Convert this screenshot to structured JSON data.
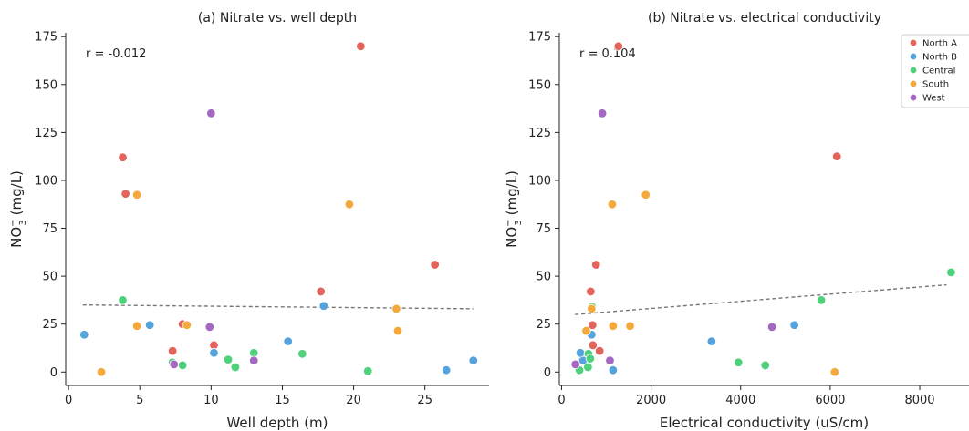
{
  "chart_data": [
    {
      "type": "scatter",
      "title": "(a) Nitrate vs. well depth",
      "xlabel": "Well depth (m)",
      "ylabel_main": "NO",
      "ylabel_sup": "−",
      "ylabel_sub": "3",
      "ylabel_unit": " (mg/L)",
      "xlim": [
        -0.2,
        29.5
      ],
      "ylim": [
        -7,
        177
      ],
      "xticks": [
        0,
        5,
        10,
        15,
        20,
        25
      ],
      "yticks": [
        0,
        25,
        50,
        75,
        100,
        125,
        150,
        175
      ],
      "annotation": "r = -0.012",
      "trend": {
        "x1": 1.0,
        "y1": 35.0,
        "x2": 28.4,
        "y2": 33.0
      },
      "series": [
        {
          "name": "North A",
          "color": "#e2645a",
          "points": [
            [
              3.8,
              112
            ],
            [
              4.0,
              93
            ],
            [
              7.3,
              11
            ],
            [
              8.0,
              25
            ],
            [
              10.2,
              14
            ],
            [
              17.7,
              42
            ],
            [
              20.5,
              170
            ],
            [
              25.7,
              56
            ]
          ]
        },
        {
          "name": "North B",
          "color": "#55a3dd",
          "points": [
            [
              1.1,
              19.5
            ],
            [
              5.7,
              24.5
            ],
            [
              10.2,
              10
            ],
            [
              15.4,
              16
            ],
            [
              17.9,
              34.5
            ],
            [
              26.5,
              1
            ],
            [
              28.4,
              6
            ]
          ]
        },
        {
          "name": "Central",
          "color": "#4fd17b",
          "points": [
            [
              3.8,
              37.5
            ],
            [
              7.3,
              5
            ],
            [
              8.0,
              3.5
            ],
            [
              11.2,
              6.5
            ],
            [
              11.7,
              2.5
            ],
            [
              13.0,
              10
            ],
            [
              16.4,
              9.5
            ],
            [
              21.0,
              0.5
            ]
          ]
        },
        {
          "name": "South",
          "color": "#f5a93c",
          "points": [
            [
              2.3,
              0
            ],
            [
              4.8,
              92.5
            ],
            [
              4.8,
              24
            ],
            [
              8.3,
              24.5
            ],
            [
              19.7,
              87.5
            ],
            [
              23.0,
              33
            ],
            [
              23.1,
              21.5
            ]
          ]
        },
        {
          "name": "West",
          "color": "#a468c2",
          "points": [
            [
              7.4,
              4
            ],
            [
              9.9,
              23.5
            ],
            [
              10.0,
              135
            ],
            [
              13.0,
              6
            ]
          ]
        }
      ]
    },
    {
      "type": "scatter",
      "title": "(b) Nitrate vs. electrical conductivity",
      "xlabel": "Electrical conductivity (uS/cm)",
      "ylabel_main": "NO",
      "ylabel_sup": "−",
      "ylabel_sub": "3",
      "ylabel_unit": " (mg/L)",
      "xlim": [
        -50,
        9100
      ],
      "ylim": [
        -7,
        177
      ],
      "xticks": [
        0,
        2000,
        4000,
        6000,
        8000
      ],
      "yticks": [
        0,
        25,
        50,
        75,
        100,
        125,
        150,
        175
      ],
      "annotation": "r = 0.104",
      "legend_position": "top-right",
      "trend": {
        "x1": 300,
        "y1": 30.0,
        "x2": 8600,
        "y2": 45.5
      },
      "series": [
        {
          "name": "North A",
          "color": "#e2645a",
          "points": [
            [
              1270,
              170
            ],
            [
              6150,
              112.5
            ],
            [
              770,
              56
            ],
            [
              650,
              42
            ],
            [
              690,
              24.5
            ],
            [
              700,
              14
            ],
            [
              850,
              11
            ]
          ]
        },
        {
          "name": "North B",
          "color": "#55a3dd",
          "points": [
            [
              480,
              6
            ],
            [
              420,
              10
            ],
            [
              670,
              19.5
            ],
            [
              1150,
              1
            ],
            [
              3350,
              16
            ],
            [
              5200,
              24.5
            ]
          ]
        },
        {
          "name": "Central",
          "color": "#4fd17b",
          "points": [
            [
              400,
              1
            ],
            [
              590,
              2.5
            ],
            [
              600,
              9.5
            ],
            [
              640,
              7
            ],
            [
              680,
              34
            ],
            [
              3950,
              5
            ],
            [
              4550,
              3.5
            ],
            [
              5800,
              37.5
            ],
            [
              8700,
              52
            ]
          ]
        },
        {
          "name": "South",
          "color": "#f5a93c",
          "points": [
            [
              1880,
              92.5
            ],
            [
              1130,
              87.5
            ],
            [
              670,
              33
            ],
            [
              1150,
              24
            ],
            [
              1530,
              24
            ],
            [
              550,
              21.5
            ],
            [
              6100,
              0
            ]
          ]
        },
        {
          "name": "West",
          "color": "#a468c2",
          "points": [
            [
              910,
              135
            ],
            [
              4700,
              23.5
            ],
            [
              1080,
              6
            ],
            [
              310,
              4
            ]
          ]
        }
      ]
    }
  ]
}
